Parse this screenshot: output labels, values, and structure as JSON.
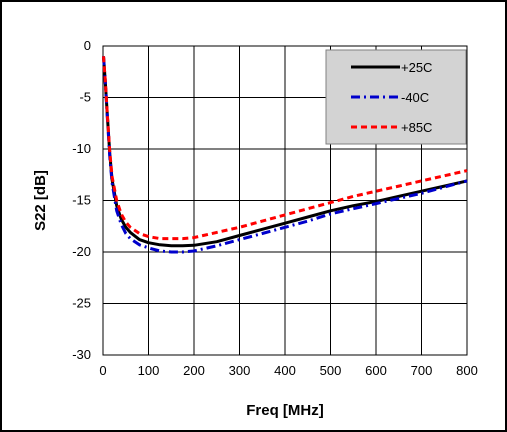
{
  "chart_data": {
    "type": "line",
    "xlabel": "Freq [MHz]",
    "ylabel": "S22 [dB]",
    "xlim": [
      0,
      800
    ],
    "ylim": [
      -30,
      0
    ],
    "xticks": [
      0,
      100,
      200,
      300,
      400,
      500,
      600,
      700,
      800
    ],
    "yticks": [
      0,
      -5,
      -10,
      -15,
      -20,
      -25,
      -30
    ],
    "grid": true,
    "legend_position": "top-right",
    "series": [
      {
        "name": "+25C",
        "color": "#000000",
        "dash": "solid",
        "x": [
          1,
          5,
          10,
          15,
          20,
          30,
          40,
          50,
          60,
          80,
          100,
          125,
          150,
          175,
          200,
          250,
          300,
          350,
          400,
          450,
          500,
          550,
          600,
          650,
          700,
          750,
          800
        ],
        "y": [
          -1,
          -3.5,
          -7,
          -10.5,
          -13,
          -15.5,
          -16.8,
          -17.6,
          -18.1,
          -18.8,
          -19.1,
          -19.3,
          -19.4,
          -19.4,
          -19.35,
          -19.0,
          -18.4,
          -17.8,
          -17.2,
          -16.6,
          -16.0,
          -15.5,
          -15.1,
          -14.6,
          -14.1,
          -13.6,
          -13.1
        ]
      },
      {
        "name": "-40C",
        "color": "#0000cc",
        "dash": "dashdot",
        "x": [
          1,
          5,
          10,
          15,
          20,
          30,
          40,
          50,
          60,
          80,
          100,
          125,
          150,
          175,
          200,
          250,
          300,
          350,
          400,
          450,
          500,
          550,
          600,
          650,
          700,
          750,
          800
        ],
        "y": [
          -1,
          -3.5,
          -7.2,
          -10.8,
          -13.3,
          -16.0,
          -17.3,
          -18.2,
          -18.7,
          -19.3,
          -19.6,
          -19.9,
          -20.0,
          -20.0,
          -19.9,
          -19.4,
          -18.8,
          -18.2,
          -17.6,
          -17.0,
          -16.3,
          -15.8,
          -15.3,
          -14.8,
          -14.3,
          -13.7,
          -13.1
        ]
      },
      {
        "name": "+85C",
        "color": "#ff0000",
        "dash": "dashed",
        "x": [
          1,
          5,
          10,
          15,
          20,
          30,
          40,
          50,
          60,
          80,
          100,
          125,
          150,
          175,
          200,
          250,
          300,
          350,
          400,
          450,
          500,
          550,
          600,
          650,
          700,
          750,
          800
        ],
        "y": [
          -1,
          -3.4,
          -6.9,
          -10.3,
          -12.7,
          -15.0,
          -16.3,
          -17.1,
          -17.6,
          -18.2,
          -18.5,
          -18.7,
          -18.7,
          -18.7,
          -18.6,
          -18.1,
          -17.6,
          -17.0,
          -16.4,
          -15.8,
          -15.2,
          -14.6,
          -14.1,
          -13.6,
          -13.1,
          -12.6,
          -12.1
        ]
      }
    ]
  }
}
